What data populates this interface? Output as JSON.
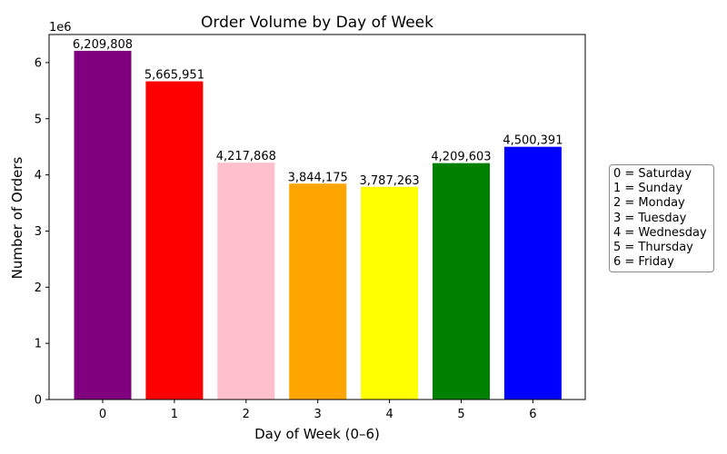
{
  "chart_data": {
    "type": "bar",
    "title": "Order Volume by Day of Week",
    "xlabel": "Day of Week (0–6)",
    "ylabel": "Number of Orders",
    "y_scale_label": "1e6",
    "categories": [
      "0",
      "1",
      "2",
      "3",
      "4",
      "5",
      "6"
    ],
    "values": [
      6209808,
      5665951,
      4217868,
      3844175,
      3787263,
      4209603,
      4500391
    ],
    "value_labels": [
      "6,209,808",
      "5,665,951",
      "4,217,868",
      "3,844,175",
      "3,787,263",
      "4,209,603",
      "4,500,391"
    ],
    "colors": [
      "#800080",
      "#ff0000",
      "#ffc0cb",
      "#ffa500",
      "#ffff00",
      "#008000",
      "#0000ff"
    ],
    "ylim": [
      0,
      6500000
    ],
    "yticks": [
      0,
      1000000,
      2000000,
      3000000,
      4000000,
      5000000,
      6000000
    ],
    "ytick_labels": [
      "0",
      "1",
      "2",
      "3",
      "4",
      "5",
      "6"
    ],
    "grid": false,
    "legend_placement": "right",
    "legend": [
      "0 = Saturday",
      "1 = Sunday",
      "2 = Monday",
      "3 = Tuesday",
      "4 = Wednesday",
      "5 = Thursday",
      "6 = Friday"
    ]
  }
}
